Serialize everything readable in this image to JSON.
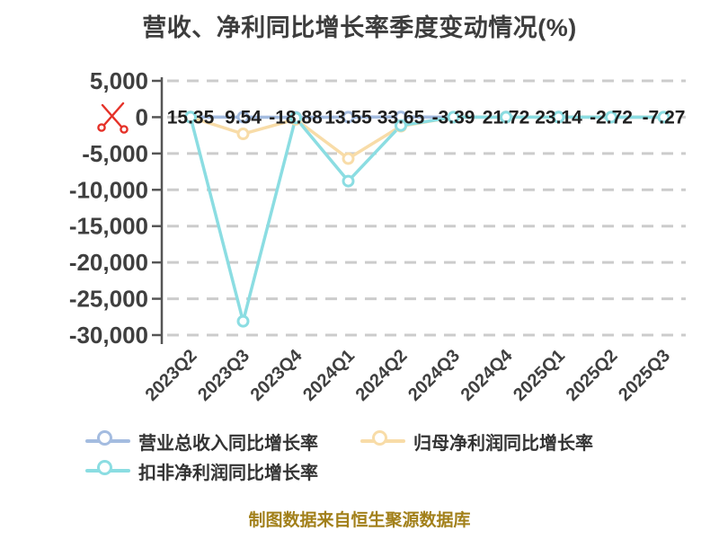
{
  "chart_data": {
    "type": "line",
    "title": "营收、净利同比增长率季度变动情况(%)",
    "categories": [
      "2023Q2",
      "2023Q3",
      "2023Q4",
      "2024Q1",
      "2024Q2",
      "2024Q3",
      "2024Q4",
      "2025Q1",
      "2025Q2",
      "2025Q3"
    ],
    "series": [
      {
        "name": "营业总收入同比增长率",
        "color": "#A4BCE0",
        "values": [
          15.35,
          9.54,
          -18.88,
          13.55,
          33.65,
          -3.39,
          21.72,
          23.14,
          -2.72,
          -7.27
        ],
        "show_labels": true,
        "estimated": false
      },
      {
        "name": "归母净利润同比增长率",
        "color": "#F8DCA8",
        "values": [
          0,
          -2300,
          -300,
          -5700,
          -1250,
          0,
          0,
          0,
          0,
          0
        ],
        "show_labels": false,
        "estimated": true
      },
      {
        "name": "扣非净利润同比增长率",
        "color": "#8BDDE2",
        "values": [
          0,
          -28100,
          -100,
          -8800,
          -1150,
          0,
          0,
          0,
          0,
          0
        ],
        "show_labels": false,
        "estimated": true
      }
    ],
    "data_labels": [
      "15.35",
      "9.54",
      "-18.88",
      "13.55",
      "33.65",
      "-3.39",
      "21.72",
      "23.14",
      "-2.72",
      "-7.27"
    ],
    "ylim": [
      -30000,
      5000
    ],
    "ytick_values": [
      5000,
      0,
      -5000,
      -10000,
      -15000,
      -20000,
      -25000,
      -30000
    ],
    "ytick_labels": [
      "5,000",
      "0",
      "-5,000",
      "-10,000",
      "-15,000",
      "-20,000",
      "-25,000",
      "-30,000"
    ],
    "grid": "dashed-horizontal",
    "legend_position": "bottom-left",
    "axis_break_marker": "scissors-at-zero-line"
  },
  "legend": {
    "items": [
      {
        "label": "营业总收入同比增长率"
      },
      {
        "label": "归母净利润同比增长率"
      },
      {
        "label": "扣非净利润同比增长率"
      }
    ]
  },
  "footer_note": "制图数据来自恒生聚源数据库",
  "icons": {
    "axis_break": "scissors-icon"
  },
  "colors": {
    "background": "#ffffff",
    "title_text": "#3d3d3d",
    "axis_text": "#3f3f3f",
    "label_text": "#1f1f1f",
    "grid": "#cccccc",
    "axis_line": "#555555",
    "legend_text": "#333333",
    "footer_text": "#a2801a",
    "scissors": "#e53229",
    "marker_fill": "#ffffff"
  }
}
